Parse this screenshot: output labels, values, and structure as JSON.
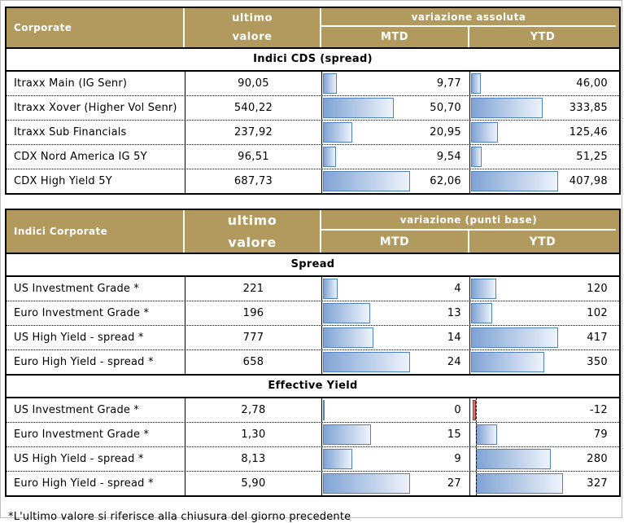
{
  "footnote": "*L'ultimo valore si riferisce alla chiusura del giorno precedente",
  "colors": {
    "header_bg": "#b29a5e",
    "bar_border": "#4f81bd",
    "bar_fill_dark": "#7fa3d4",
    "bar_fill_light": "#eef3fb",
    "negative_bar": "#a51f1f"
  },
  "tables": [
    {
      "id": "cds",
      "corner_label": "Corporate",
      "value_col_lines": [
        "ultimo",
        "valore"
      ],
      "group_label": "variazione assoluta",
      "mtd_label": "MTD",
      "ytd_label": "YTD",
      "sections": [
        {
          "title": "Indici CDS (spread)",
          "rows": [
            {
              "label": "Itraxx Main (IG Senr)",
              "value": "90,05",
              "mtd": "9,77",
              "ytd": "46,00"
            },
            {
              "label": "Itraxx Xover (Higher Vol Senr)",
              "value": "540,22",
              "mtd": "50,70",
              "ytd": "333,85"
            },
            {
              "label": "Itraxx Sub Financials",
              "value": "237,92",
              "mtd": "20,95",
              "ytd": "125,46"
            },
            {
              "label": "CDX Nord America IG 5Y",
              "value": "96,51",
              "mtd": "9,54",
              "ytd": "51,25"
            },
            {
              "label": "CDX High Yield 5Y",
              "value": "687,73",
              "mtd": "62,06",
              "ytd": "407,98"
            }
          ]
        }
      ]
    },
    {
      "id": "corporate",
      "corner_label": "Indici Corporate",
      "value_col_lines": [
        "ultimo",
        "valore"
      ],
      "group_label": "variazione (punti base)",
      "mtd_label": "MTD",
      "ytd_label": "YTD",
      "sections": [
        {
          "title": "Spread",
          "rows": [
            {
              "label": "US Investment Grade *",
              "value": "221",
              "mtd": "4",
              "ytd": "120"
            },
            {
              "label": "Euro Investment Grade *",
              "value": "196",
              "mtd": "13",
              "ytd": "102"
            },
            {
              "label": "US High Yield  - spread *",
              "value": "777",
              "mtd": "14",
              "ytd": "417"
            },
            {
              "label": "Euro High Yield  - spread *",
              "value": "658",
              "mtd": "24",
              "ytd": "350"
            }
          ]
        },
        {
          "title": "Effective Yield",
          "rows": [
            {
              "label": "US Investment Grade *",
              "value": "2,78",
              "mtd": "0",
              "ytd": "-12"
            },
            {
              "label": "Euro Investment Grade *",
              "value": "1,30",
              "mtd": "15",
              "ytd": "79"
            },
            {
              "label": "US High Yield  - spread *",
              "value": "8,13",
              "mtd": "9",
              "ytd": "280"
            },
            {
              "label": "Euro High Yield  - spread *",
              "value": "5,90",
              "mtd": "27",
              "ytd": "327"
            }
          ]
        }
      ]
    }
  ]
}
